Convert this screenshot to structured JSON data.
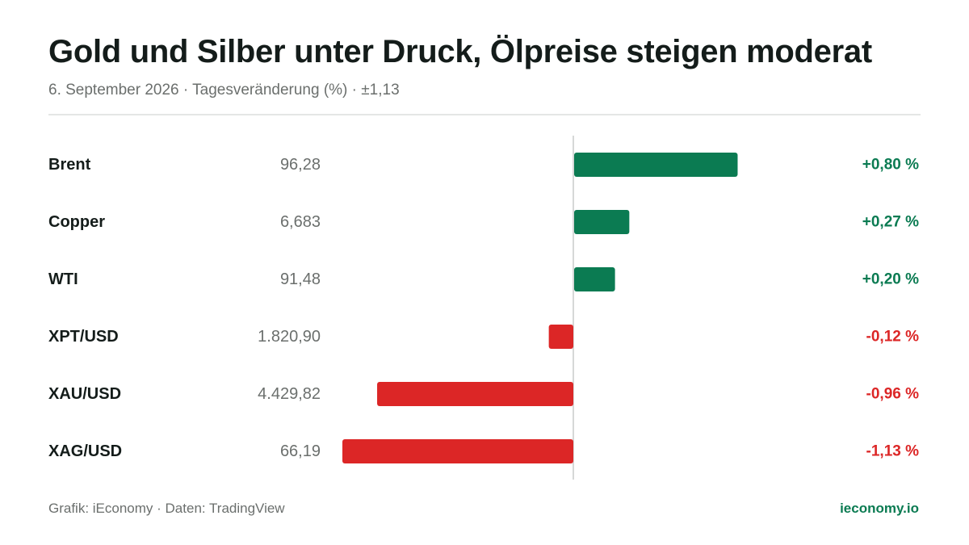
{
  "title": "Gold und Silber unter Druck, Ölpreise steigen moderat",
  "subtitle": "6. September 2026 · Tagesveränderung (%) · ±1,13",
  "footer": {
    "source": "Grafik: iEconomy · Daten: TradingView",
    "brand": "ieconomy.io"
  },
  "colors": {
    "positive": "#0b7b52",
    "negative": "#dc2626",
    "label": "#141c1a",
    "price": "#6b6f6d",
    "axis": "#d6d8d7"
  },
  "chart_data": {
    "type": "bar",
    "orientation": "horizontal",
    "xlim": [
      -1.13,
      1.13
    ],
    "grid": false,
    "categories": [
      "Brent",
      "Copper",
      "WTI",
      "XPT/USD",
      "XAU/USD",
      "XAG/USD"
    ],
    "prices": [
      "96,28",
      "6,683",
      "91,48",
      "1.820,90",
      "4.429,82",
      "66,19"
    ],
    "values": [
      0.8,
      0.27,
      0.2,
      -0.12,
      -0.96,
      -1.13
    ],
    "value_labels": [
      "+0,80 %",
      "+0,27 %",
      "+0,20 %",
      "-0,12 %",
      "-0,96 %",
      "-1,13 %"
    ]
  }
}
